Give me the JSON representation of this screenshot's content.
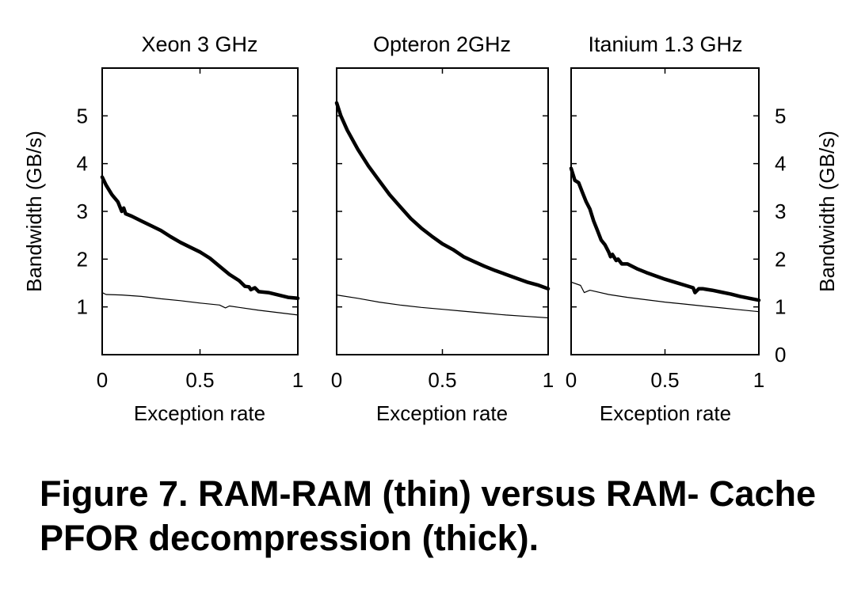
{
  "caption": {
    "line1": "Figure 7. RAM-RAM (thin) versus RAM- Cache",
    "line2": "PFOR decompression (thick)."
  },
  "chart_data": [
    {
      "type": "line",
      "title": "Xeon 3 GHz",
      "xlabel": "Exception rate",
      "ylabel": "Bandwidth (GB/s)",
      "xlim": [
        0,
        1
      ],
      "ylim": [
        0,
        6
      ],
      "x_ticks": [
        "0",
        "0.5",
        "1"
      ],
      "y_ticks": [
        "1",
        "2",
        "3",
        "4",
        "5"
      ],
      "series": [
        {
          "name": "RAM-Cache",
          "style": "thick",
          "points": [
            [
              0,
              3.72
            ],
            [
              0.02,
              3.55
            ],
            [
              0.05,
              3.35
            ],
            [
              0.08,
              3.2
            ],
            [
              0.1,
              3.0
            ],
            [
              0.11,
              3.07
            ],
            [
              0.12,
              2.95
            ],
            [
              0.15,
              2.9
            ],
            [
              0.2,
              2.8
            ],
            [
              0.25,
              2.7
            ],
            [
              0.3,
              2.6
            ],
            [
              0.35,
              2.47
            ],
            [
              0.4,
              2.35
            ],
            [
              0.45,
              2.25
            ],
            [
              0.5,
              2.15
            ],
            [
              0.55,
              2.02
            ],
            [
              0.6,
              1.85
            ],
            [
              0.65,
              1.68
            ],
            [
              0.7,
              1.55
            ],
            [
              0.73,
              1.43
            ],
            [
              0.75,
              1.42
            ],
            [
              0.76,
              1.36
            ],
            [
              0.78,
              1.4
            ],
            [
              0.8,
              1.32
            ],
            [
              0.85,
              1.3
            ],
            [
              0.9,
              1.25
            ],
            [
              0.95,
              1.2
            ],
            [
              1.0,
              1.18
            ]
          ]
        },
        {
          "name": "RAM-RAM",
          "style": "thin",
          "points": [
            [
              0,
              1.3
            ],
            [
              0.02,
              1.26
            ],
            [
              0.1,
              1.25
            ],
            [
              0.2,
              1.22
            ],
            [
              0.3,
              1.17
            ],
            [
              0.4,
              1.13
            ],
            [
              0.5,
              1.08
            ],
            [
              0.6,
              1.04
            ],
            [
              0.63,
              0.98
            ],
            [
              0.65,
              1.02
            ],
            [
              0.7,
              0.99
            ],
            [
              0.8,
              0.93
            ],
            [
              0.9,
              0.88
            ],
            [
              1.0,
              0.83
            ]
          ]
        }
      ]
    },
    {
      "type": "line",
      "title": "Opteron 2GHz",
      "xlabel": "Exception rate",
      "xlim": [
        0,
        1
      ],
      "ylim": [
        0,
        6
      ],
      "x_ticks": [
        "0",
        "0.5",
        "1"
      ],
      "series": [
        {
          "name": "RAM-Cache",
          "style": "thick",
          "points": [
            [
              0,
              5.27
            ],
            [
              0.02,
              5.0
            ],
            [
              0.05,
              4.7
            ],
            [
              0.1,
              4.3
            ],
            [
              0.15,
              3.95
            ],
            [
              0.2,
              3.65
            ],
            [
              0.25,
              3.35
            ],
            [
              0.3,
              3.1
            ],
            [
              0.35,
              2.85
            ],
            [
              0.4,
              2.65
            ],
            [
              0.45,
              2.48
            ],
            [
              0.5,
              2.32
            ],
            [
              0.55,
              2.2
            ],
            [
              0.6,
              2.05
            ],
            [
              0.65,
              1.95
            ],
            [
              0.7,
              1.85
            ],
            [
              0.75,
              1.76
            ],
            [
              0.8,
              1.68
            ],
            [
              0.85,
              1.6
            ],
            [
              0.9,
              1.52
            ],
            [
              0.95,
              1.46
            ],
            [
              1.0,
              1.38
            ]
          ]
        },
        {
          "name": "RAM-RAM",
          "style": "thin",
          "points": [
            [
              0,
              1.25
            ],
            [
              0.1,
              1.18
            ],
            [
              0.2,
              1.1
            ],
            [
              0.3,
              1.04
            ],
            [
              0.4,
              0.99
            ],
            [
              0.5,
              0.95
            ],
            [
              0.6,
              0.91
            ],
            [
              0.7,
              0.87
            ],
            [
              0.8,
              0.83
            ],
            [
              0.9,
              0.8
            ],
            [
              1.0,
              0.77
            ]
          ]
        }
      ]
    },
    {
      "type": "line",
      "title": "Itanium 1.3 GHz",
      "xlabel": "Exception rate",
      "ylabel": "Bandwidth (GB/s)",
      "xlim": [
        0,
        1
      ],
      "ylim": [
        0,
        6
      ],
      "x_ticks": [
        "0",
        "0.5",
        "1"
      ],
      "y_ticks": [
        "0",
        "1",
        "2",
        "3",
        "4",
        "5"
      ],
      "series": [
        {
          "name": "RAM-Cache",
          "style": "thick",
          "points": [
            [
              0,
              3.9
            ],
            [
              0.02,
              3.65
            ],
            [
              0.04,
              3.6
            ],
            [
              0.06,
              3.4
            ],
            [
              0.08,
              3.2
            ],
            [
              0.1,
              3.05
            ],
            [
              0.12,
              2.8
            ],
            [
              0.14,
              2.6
            ],
            [
              0.16,
              2.4
            ],
            [
              0.18,
              2.3
            ],
            [
              0.2,
              2.15
            ],
            [
              0.21,
              2.05
            ],
            [
              0.22,
              2.1
            ],
            [
              0.24,
              1.97
            ],
            [
              0.25,
              2.0
            ],
            [
              0.27,
              1.9
            ],
            [
              0.3,
              1.9
            ],
            [
              0.35,
              1.8
            ],
            [
              0.4,
              1.72
            ],
            [
              0.45,
              1.65
            ],
            [
              0.5,
              1.58
            ],
            [
              0.55,
              1.52
            ],
            [
              0.6,
              1.46
            ],
            [
              0.65,
              1.4
            ],
            [
              0.66,
              1.3
            ],
            [
              0.68,
              1.38
            ],
            [
              0.7,
              1.38
            ],
            [
              0.75,
              1.35
            ],
            [
              0.8,
              1.31
            ],
            [
              0.85,
              1.27
            ],
            [
              0.9,
              1.22
            ],
            [
              0.95,
              1.18
            ],
            [
              1.0,
              1.14
            ]
          ]
        },
        {
          "name": "RAM-RAM",
          "style": "thin",
          "points": [
            [
              0,
              1.52
            ],
            [
              0.05,
              1.45
            ],
            [
              0.07,
              1.3
            ],
            [
              0.1,
              1.35
            ],
            [
              0.2,
              1.26
            ],
            [
              0.3,
              1.2
            ],
            [
              0.4,
              1.15
            ],
            [
              0.5,
              1.1
            ],
            [
              0.6,
              1.06
            ],
            [
              0.7,
              1.02
            ],
            [
              0.8,
              0.98
            ],
            [
              0.9,
              0.94
            ],
            [
              1.0,
              0.9
            ]
          ]
        }
      ]
    }
  ]
}
